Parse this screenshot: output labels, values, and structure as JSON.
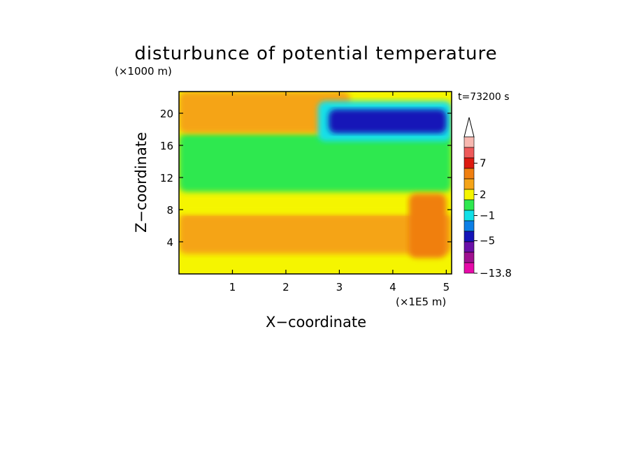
{
  "chart_data": {
    "type": "heatmap",
    "title": "disturbunce of potential temperature",
    "time_label": "t=73200 s",
    "xlabel": "X−coordinate",
    "ylabel": "Z−coordinate",
    "x_unit": "(×1E5 m)",
    "y_unit": "(×1000 m)",
    "xlim": [
      0,
      5.1
    ],
    "ylim": [
      0,
      22.7
    ],
    "x_ticks": [
      "1",
      "2",
      "3",
      "4",
      "5"
    ],
    "x_tick_values": [
      1,
      2,
      3,
      4,
      5
    ],
    "y_ticks": [
      "4",
      "8",
      "12",
      "16",
      "20"
    ],
    "y_tick_values": [
      4,
      8,
      12,
      16,
      20
    ],
    "colorbar": {
      "labels": [
        "7",
        "2",
        "−1",
        "−5",
        "−13.8"
      ],
      "label_values": [
        7,
        2,
        -1,
        -5,
        -13.8
      ],
      "levels": [
        {
          "color": "#f7b8b0"
        },
        {
          "color": "#ee5a5a"
        },
        {
          "color": "#dd1a10"
        },
        {
          "color": "#f07f10"
        },
        {
          "color": "#f5a418"
        },
        {
          "color": "#f5f500"
        },
        {
          "color": "#2ee84f"
        },
        {
          "color": "#12e0e8"
        },
        {
          "color": "#0d7fe6"
        },
        {
          "color": "#1414b8"
        },
        {
          "color": "#6a10a8"
        },
        {
          "color": "#a01090"
        },
        {
          "color": "#e60aa8"
        }
      ]
    },
    "regions": [
      {
        "level": "2",
        "color": "#f5a418",
        "x": [
          0,
          5.1
        ],
        "z": [
          2.5,
          7.5
        ]
      },
      {
        "level": "1",
        "color": "#f5f500",
        "x": [
          0,
          5.1
        ],
        "z": [
          7.5,
          10.2
        ]
      },
      {
        "level": "0",
        "color": "#2ee84f",
        "x": [
          0,
          5.1
        ],
        "z": [
          10.2,
          17.5
        ]
      },
      {
        "level": "2",
        "color": "#f5a418",
        "x": [
          0,
          3.2
        ],
        "z": [
          17.5,
          22.7
        ]
      },
      {
        "level": "-1",
        "color": "#12e0e8",
        "x": [
          2.6,
          5.1
        ],
        "z": [
          16.5,
          21.5
        ]
      },
      {
        "level": "-5",
        "color": "#1414b8",
        "x": [
          2.8,
          5.0
        ],
        "z": [
          17.5,
          20.5
        ]
      },
      {
        "level": "4",
        "color": "#f07f10",
        "x": [
          4.3,
          5.0
        ],
        "z": [
          2.0,
          10.0
        ]
      }
    ]
  }
}
